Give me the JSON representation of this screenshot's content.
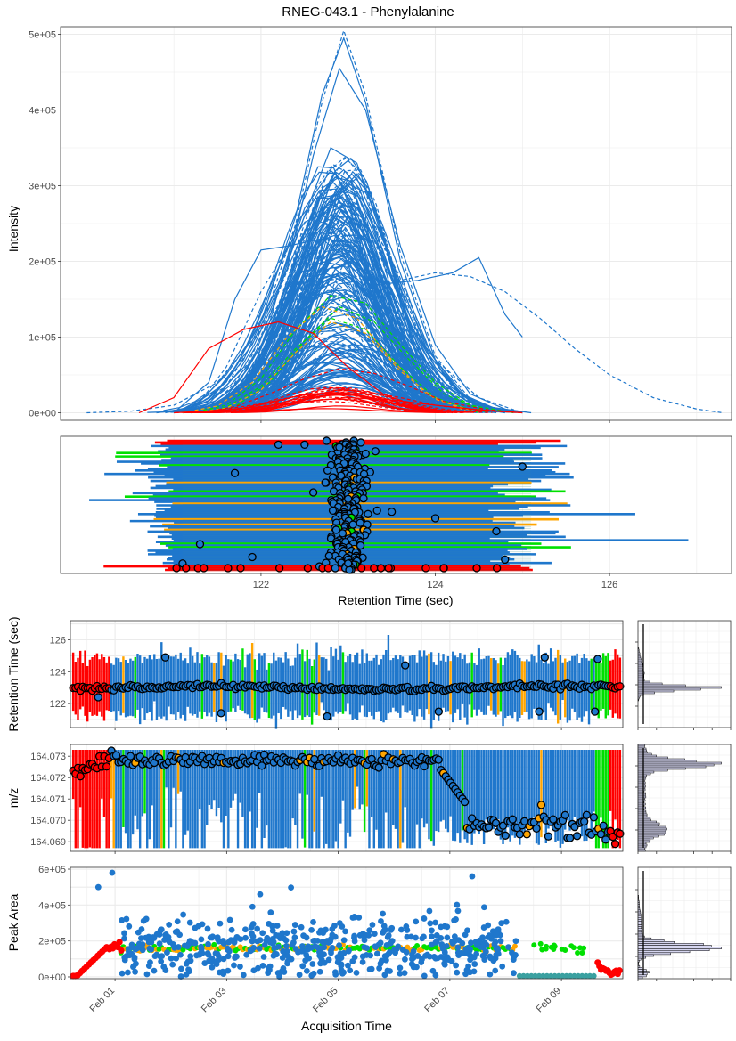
{
  "title": "RNEG-043.1 - Phenylalanine",
  "colors": {
    "main": "#1f77cc",
    "red": "#ff0000",
    "green": "#00e000",
    "orange": "#ffa500",
    "grid": "#ebebeb",
    "panel_border": "#333333"
  },
  "chart_data": [
    {
      "id": "chromatogram",
      "type": "line",
      "ylabel": "Intensity",
      "xlim": [
        119.7,
        127.4
      ],
      "ylim": [
        0,
        500000
      ],
      "yticks": [
        {
          "value": 0,
          "label": "0e+00"
        },
        {
          "value": 100000,
          "label": "1e+05"
        },
        {
          "value": 200000,
          "label": "2e+05"
        },
        {
          "value": 300000,
          "label": "3e+05"
        },
        {
          "value": 400000,
          "label": "4e+05"
        },
        {
          "value": 500000,
          "label": "5e+05"
        }
      ],
      "grid": true,
      "series": [
        {
          "color": "main",
          "style": "solid",
          "x": [
            120.8,
            121.1,
            121.5,
            121.9,
            122.3,
            122.6,
            122.9,
            123.2,
            123.6,
            124.0,
            124.4,
            124.8,
            125.0
          ],
          "y": [
            0,
            5000,
            30000,
            90000,
            190000,
            340000,
            455000,
            400000,
            220000,
            90000,
            25000,
            5000,
            0
          ]
        },
        {
          "color": "main",
          "style": "solid",
          "x": [
            120.9,
            121.2,
            121.6,
            122.0,
            122.4,
            122.7,
            122.95,
            123.2,
            123.6,
            124.0,
            124.4,
            124.8
          ],
          "y": [
            0,
            8000,
            40000,
            120000,
            260000,
            420000,
            495000,
            410000,
            200000,
            70000,
            15000,
            0
          ]
        },
        {
          "color": "main",
          "style": "dashed",
          "x": [
            120.8,
            121.2,
            121.6,
            122.0,
            122.4,
            122.7,
            122.95,
            123.2,
            123.6,
            124.0,
            124.4,
            124.8
          ],
          "y": [
            0,
            6000,
            35000,
            110000,
            250000,
            410000,
            505000,
            420000,
            210000,
            75000,
            18000,
            0
          ]
        },
        {
          "color": "main",
          "style": "solid",
          "x": [
            121.0,
            121.4,
            121.8,
            122.2,
            122.5,
            122.8,
            123.1,
            123.5,
            123.9,
            124.3,
            124.7,
            125.0
          ],
          "y": [
            0,
            15000,
            70000,
            170000,
            270000,
            320000,
            290000,
            180000,
            80000,
            25000,
            5000,
            0
          ]
        },
        {
          "color": "main",
          "style": "solid",
          "x": [
            121.1,
            121.5,
            121.9,
            122.3,
            122.6,
            122.9,
            123.2,
            123.6,
            124.0,
            124.4,
            124.9
          ],
          "y": [
            0,
            10000,
            50000,
            130000,
            210000,
            255000,
            230000,
            140000,
            60000,
            15000,
            0
          ]
        },
        {
          "color": "main",
          "style": "solid",
          "x": [
            121.0,
            121.4,
            121.8,
            122.2,
            122.6,
            122.9,
            123.3,
            123.7,
            124.1,
            124.5,
            125.0
          ],
          "y": [
            0,
            12000,
            60000,
            140000,
            195000,
            205000,
            165000,
            95000,
            40000,
            10000,
            0
          ]
        },
        {
          "color": "main",
          "style": "solid",
          "x": [
            121.2,
            121.6,
            122.0,
            122.4,
            122.7,
            123.0,
            123.3,
            123.7,
            124.1,
            124.6,
            125.1
          ],
          "y": [
            0,
            8000,
            45000,
            110000,
            165000,
            180000,
            150000,
            85000,
            35000,
            8000,
            0
          ]
        },
        {
          "color": "main",
          "style": "solid",
          "x": [
            121.3,
            121.7,
            122.1,
            122.5,
            122.8,
            123.1,
            123.5,
            123.9,
            124.3,
            124.8
          ],
          "y": [
            0,
            10000,
            50000,
            110000,
            140000,
            130000,
            80000,
            35000,
            10000,
            0
          ]
        },
        {
          "color": "main",
          "style": "solid",
          "x": [
            121.0,
            121.4,
            121.8,
            122.2,
            122.6,
            123.0,
            123.4,
            123.8,
            124.2,
            124.7
          ],
          "y": [
            0,
            7000,
            30000,
            75000,
            110000,
            115000,
            85000,
            45000,
            15000,
            0
          ]
        },
        {
          "color": "main",
          "style": "solid",
          "x": [
            121.0,
            121.4,
            121.7,
            122.0,
            122.3,
            122.7,
            123.0,
            123.4,
            123.8,
            124.2,
            124.5,
            124.8,
            125.0
          ],
          "y": [
            0,
            40000,
            150000,
            215000,
            220000,
            230000,
            200000,
            170000,
            175000,
            185000,
            205000,
            130000,
            100000
          ]
        },
        {
          "color": "main",
          "style": "dashed",
          "x": [
            121.2,
            121.6,
            122.0,
            122.4,
            122.8,
            123.2,
            123.6,
            124.0,
            124.4,
            124.8,
            125.2,
            125.6,
            126.0,
            126.5,
            127.0,
            127.3
          ],
          "y": [
            0,
            60000,
            160000,
            235000,
            240000,
            200000,
            175000,
            185000,
            180000,
            160000,
            125000,
            85000,
            50000,
            20000,
            5000,
            0
          ]
        },
        {
          "color": "main",
          "style": "dashed",
          "x": [
            120.0,
            120.5,
            121.0,
            121.5,
            122.0,
            122.5,
            123.0,
            123.5,
            124.0,
            124.5,
            125.0
          ],
          "y": [
            0,
            2000,
            10000,
            40000,
            110000,
            190000,
            210000,
            150000,
            70000,
            20000,
            0
          ]
        },
        {
          "color": "main",
          "style": "solid",
          "x": [
            121.3,
            121.7,
            122.1,
            122.5,
            122.9,
            123.3,
            123.7,
            124.1,
            124.5,
            125.0
          ],
          "y": [
            0,
            5000,
            25000,
            60000,
            85000,
            75000,
            45000,
            20000,
            5000,
            0
          ]
        },
        {
          "color": "main",
          "style": "solid",
          "x": [
            121.4,
            121.8,
            122.2,
            122.6,
            123.0,
            123.4,
            123.8,
            124.2,
            124.6
          ],
          "y": [
            0,
            4000,
            18000,
            40000,
            50000,
            38000,
            20000,
            6000,
            0
          ]
        },
        {
          "color": "main",
          "style": "solid",
          "x": [
            121.0,
            121.3,
            121.6,
            121.9,
            122.2,
            122.5,
            122.8,
            123.1,
            123.4,
            123.7,
            124.0,
            124.4,
            124.8
          ],
          "y": [
            0,
            15000,
            50000,
            100000,
            170000,
            260000,
            350000,
            330000,
            230000,
            130000,
            60000,
            15000,
            0
          ]
        },
        {
          "color": "main",
          "style": "solid",
          "x": [
            121.1,
            121.5,
            121.9,
            122.3,
            122.7,
            123.1,
            123.5,
            123.9,
            124.3,
            124.8
          ],
          "y": [
            0,
            10000,
            45000,
            140000,
            275000,
            310000,
            200000,
            85000,
            25000,
            0
          ]
        },
        {
          "color": "main",
          "style": "dashed",
          "x": [
            121.1,
            121.5,
            121.9,
            122.3,
            122.7,
            123.1,
            123.5,
            123.9,
            124.3,
            124.8
          ],
          "y": [
            0,
            9000,
            42000,
            135000,
            270000,
            300000,
            195000,
            80000,
            22000,
            0
          ]
        },
        {
          "color": "green",
          "style": "dashed",
          "x": [
            121.2,
            121.6,
            122.0,
            122.4,
            122.8,
            123.2,
            123.6,
            124.0,
            124.4,
            124.9
          ],
          "y": [
            0,
            10000,
            45000,
            110000,
            155000,
            145000,
            90000,
            40000,
            10000,
            0
          ]
        },
        {
          "color": "green",
          "style": "dashed",
          "x": [
            121.3,
            121.7,
            122.1,
            122.5,
            122.9,
            123.3,
            123.7,
            124.1,
            124.6
          ],
          "y": [
            0,
            8000,
            40000,
            95000,
            140000,
            120000,
            70000,
            25000,
            0
          ]
        },
        {
          "color": "green",
          "style": "dashed",
          "x": [
            121.2,
            121.6,
            122.0,
            122.4,
            122.8,
            123.2,
            123.6,
            124.0,
            124.5
          ],
          "y": [
            0,
            7000,
            35000,
            85000,
            125000,
            110000,
            60000,
            20000,
            0
          ]
        },
        {
          "color": "orange",
          "style": "dashed",
          "x": [
            121.1,
            121.5,
            121.9,
            122.3,
            122.7,
            123.1,
            123.5,
            123.9,
            124.4
          ],
          "y": [
            0,
            9000,
            40000,
            100000,
            140000,
            125000,
            70000,
            25000,
            0
          ]
        },
        {
          "color": "orange",
          "style": "dashed",
          "x": [
            121.2,
            121.6,
            122.0,
            122.4,
            122.8,
            123.2,
            123.6,
            124.0,
            124.5
          ],
          "y": [
            0,
            6000,
            30000,
            80000,
            120000,
            105000,
            55000,
            18000,
            0
          ]
        },
        {
          "color": "red",
          "style": "solid",
          "x": [
            120.6,
            121.0,
            121.4,
            121.8,
            122.2,
            122.6,
            123.0,
            123.4,
            123.8,
            124.2
          ],
          "y": [
            0,
            20000,
            85000,
            110000,
            120000,
            105000,
            60000,
            25000,
            8000,
            0
          ]
        },
        {
          "color": "red",
          "style": "dashed",
          "x": [
            121.3,
            121.7,
            122.1,
            122.5,
            122.9,
            123.3,
            123.7,
            124.1,
            124.6,
            125.0
          ],
          "y": [
            0,
            8000,
            25000,
            45000,
            58000,
            52000,
            35000,
            15000,
            4000,
            0
          ]
        },
        {
          "color": "red",
          "style": "dashed",
          "x": [
            121.2,
            121.6,
            122.0,
            122.4,
            122.8,
            123.2,
            123.6,
            124.0,
            124.5,
            125.0
          ],
          "y": [
            0,
            5000,
            12000,
            22000,
            30000,
            28000,
            20000,
            10000,
            3000,
            0
          ]
        },
        {
          "color": "red",
          "style": "solid",
          "x": [
            121.0,
            121.5,
            122.0,
            122.5,
            123.0,
            123.5,
            124.0,
            124.5,
            125.0
          ],
          "y": [
            0,
            3000,
            8000,
            15000,
            20000,
            17000,
            10000,
            4000,
            0
          ]
        }
      ]
    },
    {
      "id": "rt-ranges",
      "type": "scatter",
      "xlabel": "Retention Time (sec)",
      "xlim": [
        119.7,
        127.4
      ],
      "xticks": [
        122,
        124,
        126
      ],
      "ylim": [
        0,
        1
      ],
      "grid": true,
      "description_rows": 60,
      "points_sample": [
        {
          "x": 122.2,
          "y": 0.97
        },
        {
          "x": 122.5,
          "y": 0.97
        },
        {
          "x": 122.9,
          "y": 0.95
        },
        {
          "x": 123.2,
          "y": 0.9
        },
        {
          "x": 121.7,
          "y": 0.75
        },
        {
          "x": 122.6,
          "y": 0.6
        },
        {
          "x": 123.0,
          "y": 0.55
        },
        {
          "x": 123.5,
          "y": 0.45
        },
        {
          "x": 124.0,
          "y": 0.4
        },
        {
          "x": 124.7,
          "y": 0.3
        },
        {
          "x": 121.3,
          "y": 0.2
        },
        {
          "x": 121.9,
          "y": 0.1
        },
        {
          "x": 121.1,
          "y": 0.05
        },
        {
          "x": 123.0,
          "y": 0.05
        },
        {
          "x": 124.8,
          "y": 0.08
        },
        {
          "x": 125.0,
          "y": 0.8
        }
      ]
    },
    {
      "id": "rt-vs-time",
      "type": "scatter",
      "ylabel": "Retention Time (sec)",
      "ylim": [
        120.5,
        127.2
      ],
      "yticks": [
        122,
        124,
        126
      ],
      "xlim": [
        -0.8,
        9.1
      ],
      "grid": true,
      "center": 123.0
    },
    {
      "id": "rt-histogram",
      "type": "histogram",
      "ylim": [
        120.5,
        127.2
      ],
      "grid": true
    },
    {
      "id": "mz-vs-time",
      "type": "scatter",
      "ylabel": "m/z",
      "ylim": [
        164.06855,
        164.07355
      ],
      "yticks": [
        {
          "value": 164.069,
          "label": "164.069"
        },
        {
          "value": 164.07,
          "label": "164.070"
        },
        {
          "value": 164.071,
          "label": "164.071"
        },
        {
          "value": 164.072,
          "label": "164.072"
        },
        {
          "value": 164.073,
          "label": "164.073"
        }
      ],
      "xlim": [
        -0.8,
        9.1
      ],
      "grid": true
    },
    {
      "id": "mz-histogram",
      "type": "histogram",
      "ylim": [
        164.06855,
        164.07355
      ],
      "grid": true
    },
    {
      "id": "area-vs-time",
      "type": "scatter",
      "ylabel": "Peak Area",
      "xlabel": "Acquisition Time",
      "ylim": [
        -10000,
        610000
      ],
      "yticks": [
        {
          "value": 0,
          "label": "0e+00"
        },
        {
          "value": 200000,
          "label": "2e+05"
        },
        {
          "value": 400000,
          "label": "4e+05"
        },
        {
          "value": 600000,
          "label": "6e+05"
        }
      ],
      "xlim": [
        -0.8,
        9.1
      ],
      "xticks": [
        {
          "value": 0,
          "label": "Feb 01"
        },
        {
          "value": 2,
          "label": "Feb 03"
        },
        {
          "value": 4,
          "label": "Feb 05"
        },
        {
          "value": 6,
          "label": "Feb 07"
        },
        {
          "value": 8,
          "label": "Feb 09"
        }
      ],
      "grid": true
    },
    {
      "id": "area-histogram",
      "type": "histogram",
      "ylim": [
        -10000,
        610000
      ],
      "grid": true
    }
  ],
  "labels": {
    "chrom_ylabel": "Intensity",
    "rt_xlabel": "Retention Time (sec)",
    "rt_ylabel": "Retention Time (sec)",
    "mz_ylabel": "m/z",
    "area_ylabel": "Peak Area",
    "time_xlabel": "Acquisition Time"
  }
}
